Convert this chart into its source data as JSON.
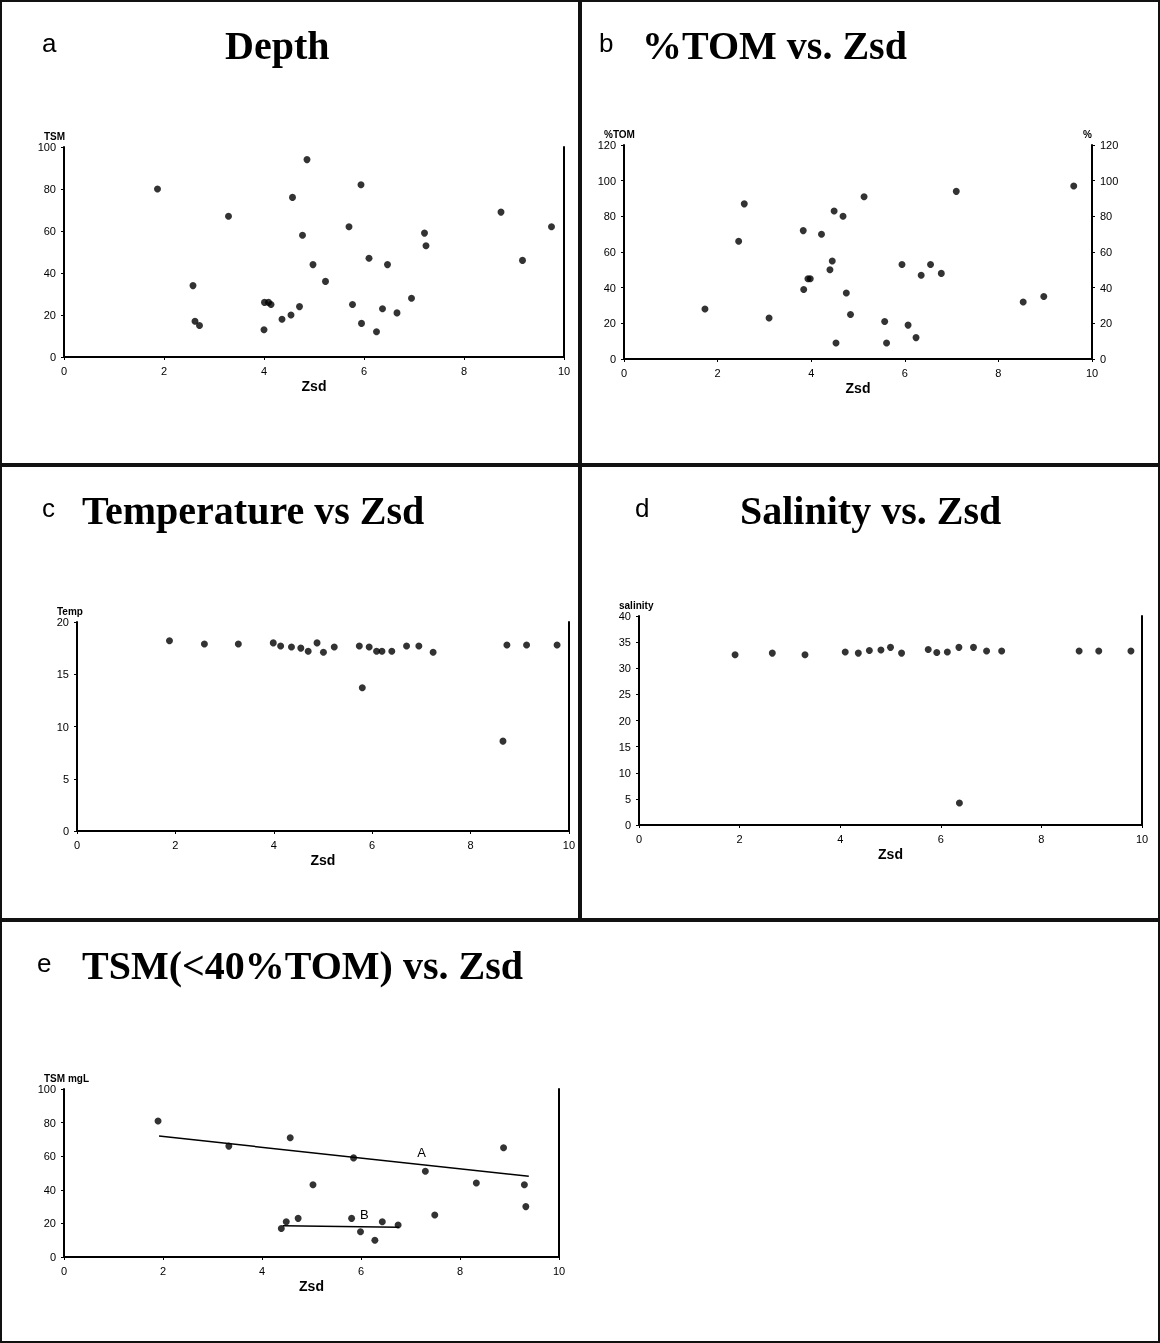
{
  "chart_data": [
    {
      "type": "scatter",
      "title": "Depth",
      "annotations": [
        "a"
      ],
      "xlabel": "Zsd",
      "ylabel": "TSM",
      "xlim": [
        0,
        10
      ],
      "xticks": [
        0,
        2,
        4,
        6,
        8,
        10
      ],
      "ylim": [
        0,
        100
      ],
      "yticks": [
        0,
        20,
        40,
        60,
        80,
        100
      ],
      "grid": false,
      "legend": false,
      "marker": "circle",
      "series": [
        {
          "color": "#000000",
          "x": [
            1.87,
            3.29,
            2.58,
            2.62,
            2.71,
            4.0,
            4.01,
            4.09,
            4.14,
            4.36,
            4.54,
            4.71,
            4.57,
            4.77,
            4.86,
            4.98,
            5.23,
            5.7,
            5.77,
            5.95,
            5.94,
            6.1,
            6.25,
            6.37,
            6.47,
            6.66,
            6.95,
            7.21,
            7.24,
            8.74,
            9.17,
            9.75
          ],
          "values": [
            80,
            67,
            34,
            17,
            15,
            13,
            26,
            26,
            25,
            18,
            20,
            24,
            76,
            58,
            94,
            44,
            36,
            62,
            25,
            16,
            82,
            47,
            12,
            23,
            44,
            21,
            28,
            59,
            53,
            69,
            46,
            62
          ]
        }
      ]
    },
    {
      "type": "scatter",
      "title": "%TOM vs. Zsd",
      "annotations": [
        "b"
      ],
      "xlabel": "Zsd",
      "ylabel": "%TOM",
      "y2label": "%",
      "xlim": [
        0,
        10
      ],
      "xticks": [
        0,
        2,
        4,
        6,
        8,
        10
      ],
      "ylim": [
        0,
        120
      ],
      "yticks": [
        0,
        20,
        40,
        60,
        80,
        100,
        120
      ],
      "y2lim": [
        0,
        120
      ],
      "y2ticks": [
        0,
        20,
        40,
        60,
        80,
        100,
        120
      ],
      "grid": false,
      "legend": false,
      "marker": "circle",
      "series": [
        {
          "color": "#000000",
          "x": [
            1.73,
            2.45,
            2.57,
            3.1,
            3.83,
            3.84,
            3.93,
            3.98,
            4.22,
            4.4,
            4.45,
            4.49,
            4.53,
            4.68,
            4.75,
            4.84,
            5.13,
            5.57,
            5.61,
            5.94,
            6.07,
            6.24,
            6.35,
            6.55,
            6.78,
            7.1,
            8.53,
            8.97,
            9.61
          ],
          "values": [
            28,
            66,
            87,
            23,
            72,
            39,
            45,
            45,
            70,
            50,
            55,
            83,
            9,
            80,
            37,
            25,
            91,
            21,
            9,
            53,
            19,
            12,
            47,
            53,
            48,
            94,
            32,
            35,
            97
          ]
        }
      ]
    },
    {
      "type": "scatter",
      "title": "Temperature vs Zsd",
      "annotations": [
        "c"
      ],
      "xlabel": "Zsd",
      "ylabel": "Temp",
      "xlim": [
        0,
        10
      ],
      "xticks": [
        0,
        2,
        4,
        6,
        8,
        10
      ],
      "ylim": [
        0,
        20
      ],
      "yticks": [
        0,
        5,
        10,
        15,
        20
      ],
      "grid": false,
      "legend": false,
      "marker": "circle",
      "series": [
        {
          "color": "#000000",
          "x": [
            1.88,
            2.59,
            3.28,
            3.99,
            4.14,
            4.36,
            4.55,
            4.7,
            4.88,
            5.01,
            5.23,
            5.74,
            5.8,
            5.94,
            6.09,
            6.2,
            6.4,
            6.7,
            6.95,
            7.24,
            8.66,
            8.74,
            9.14,
            9.76
          ],
          "values": [
            18.2,
            17.9,
            17.9,
            18.0,
            17.7,
            17.6,
            17.5,
            17.2,
            18.0,
            17.1,
            17.6,
            17.7,
            13.7,
            17.6,
            17.2,
            17.2,
            17.2,
            17.7,
            17.7,
            17.1,
            8.6,
            17.8,
            17.8,
            17.8
          ]
        }
      ]
    },
    {
      "type": "scatter",
      "title": "Salinity vs. Zsd",
      "annotations": [
        "d"
      ],
      "xlabel": "Zsd",
      "ylabel": "salinity",
      "xlim": [
        0,
        10
      ],
      "xticks": [
        0,
        2,
        4,
        6,
        8,
        10
      ],
      "ylim": [
        0,
        40
      ],
      "yticks": [
        0,
        5,
        10,
        15,
        20,
        25,
        30,
        35,
        40
      ],
      "grid": false,
      "legend": false,
      "marker": "circle",
      "series": [
        {
          "color": "#000000",
          "x": [
            1.91,
            2.65,
            3.3,
            4.1,
            4.36,
            4.58,
            4.81,
            5.0,
            5.22,
            5.75,
            5.92,
            6.13,
            6.36,
            6.37,
            6.65,
            6.91,
            7.21,
            8.75,
            9.14,
            9.78
          ],
          "values": [
            32.6,
            32.9,
            32.6,
            33.1,
            32.9,
            33.4,
            33.5,
            34.0,
            32.9,
            33.6,
            33.0,
            33.1,
            34.0,
            4.2,
            34.0,
            33.3,
            33.3,
            33.3,
            33.3,
            33.3
          ]
        }
      ]
    },
    {
      "type": "scatter",
      "title": "TSM(<40%TOM) vs. Zsd",
      "annotations": [
        "e"
      ],
      "xlabel": "Zsd",
      "ylabel": "TSM mgL",
      "xlim": [
        0,
        10
      ],
      "xticks": [
        0,
        2,
        4,
        6,
        8,
        10
      ],
      "ylim": [
        0,
        100
      ],
      "yticks": [
        0,
        20,
        40,
        60,
        80,
        100
      ],
      "grid": false,
      "legend": false,
      "marker": "circle",
      "series": [
        {
          "color": "#000000",
          "x": [
            1.9,
            3.33,
            4.57,
            5.85,
            5.03,
            7.3,
            8.88,
            9.3,
            4.39,
            4.49,
            4.73,
            5.81,
            5.99,
            6.28,
            6.43,
            6.75,
            8.33,
            7.49,
            9.33
          ],
          "values": [
            81,
            66,
            71,
            59,
            43,
            51,
            65,
            43,
            17,
            21,
            23,
            23,
            15,
            10,
            21,
            19,
            44,
            25,
            30
          ]
        },
        {
          "type": "line",
          "name": "A",
          "marker": "none",
          "color": "#000000",
          "x": [
            1.92,
            9.39
          ],
          "values": [
            72,
            48
          ]
        },
        {
          "type": "line",
          "name": "B",
          "marker": "none",
          "color": "#000000",
          "x": [
            4.42,
            6.77
          ],
          "values": [
            18.6,
            17.7
          ]
        }
      ]
    }
  ]
}
